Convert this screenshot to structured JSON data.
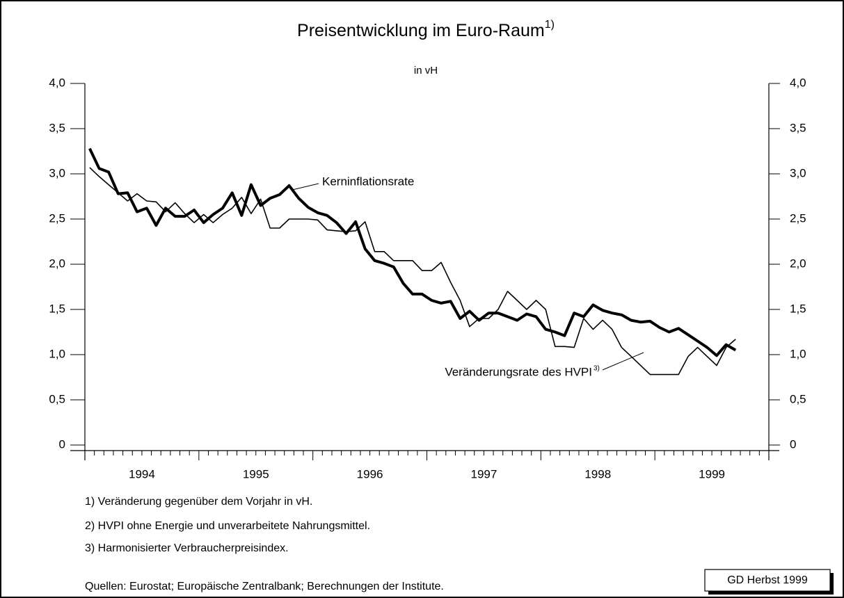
{
  "chart_data": {
    "type": "line",
    "title": "Preisentwicklung im Euro-Raum",
    "title_sup": "1)",
    "subtitle": "in vH",
    "x": [
      1994.042,
      1994.125,
      1994.208,
      1994.292,
      1994.375,
      1994.458,
      1994.542,
      1994.625,
      1994.708,
      1994.792,
      1994.875,
      1994.958,
      1995.042,
      1995.125,
      1995.208,
      1995.292,
      1995.375,
      1995.458,
      1995.542,
      1995.625,
      1995.708,
      1995.792,
      1995.875,
      1995.958,
      1996.042,
      1996.125,
      1996.208,
      1996.292,
      1996.375,
      1996.458,
      1996.542,
      1996.625,
      1996.708,
      1996.792,
      1996.875,
      1996.958,
      1997.042,
      1997.125,
      1997.208,
      1997.292,
      1997.375,
      1997.458,
      1997.542,
      1997.625,
      1997.708,
      1997.792,
      1997.875,
      1997.958,
      1998.042,
      1998.125,
      1998.208,
      1998.292,
      1998.375,
      1998.458,
      1998.542,
      1998.625,
      1998.708,
      1998.792,
      1998.875,
      1998.958,
      1999.042,
      1999.125,
      1999.208,
      1999.292,
      1999.375,
      1999.458,
      1999.542,
      1999.625,
      1999.708
    ],
    "series": [
      {
        "name": "Kerninflationsrate",
        "color": "#000000",
        "width": 4,
        "values": [
          3.28,
          3.06,
          3.02,
          2.78,
          2.79,
          2.58,
          2.62,
          2.43,
          2.62,
          2.53,
          2.53,
          2.6,
          2.46,
          2.55,
          2.62,
          2.79,
          2.54,
          2.88,
          2.65,
          2.73,
          2.77,
          2.87,
          2.73,
          2.63,
          2.57,
          2.54,
          2.46,
          2.34,
          2.47,
          2.17,
          2.04,
          2.01,
          1.97,
          1.79,
          1.67,
          1.67,
          1.6,
          1.57,
          1.59,
          1.4,
          1.48,
          1.38,
          1.46,
          1.46,
          1.42,
          1.38,
          1.45,
          1.42,
          1.28,
          1.25,
          1.21,
          1.46,
          1.42,
          1.55,
          1.49,
          1.46,
          1.44,
          1.38,
          1.36,
          1.37,
          1.3,
          1.25,
          1.29,
          1.22,
          1.15,
          1.08,
          0.99,
          1.11,
          1.05
        ]
      },
      {
        "name": "Veränderungsrate des HVPI",
        "name_sup": "3)",
        "color": "#000000",
        "width": 1.6,
        "values": [
          3.07,
          2.97,
          2.88,
          2.79,
          2.7,
          2.78,
          2.7,
          2.69,
          2.58,
          2.68,
          2.56,
          2.46,
          2.55,
          2.46,
          2.55,
          2.62,
          2.74,
          2.56,
          2.72,
          2.4,
          2.4,
          2.5,
          2.5,
          2.5,
          2.49,
          2.38,
          2.37,
          2.36,
          2.37,
          2.47,
          2.14,
          2.14,
          2.04,
          2.04,
          2.04,
          1.93,
          1.93,
          2.02,
          1.8,
          1.6,
          1.31,
          1.4,
          1.4,
          1.5,
          1.7,
          1.6,
          1.5,
          1.6,
          1.5,
          1.09,
          1.09,
          1.08,
          1.4,
          1.28,
          1.38,
          1.28,
          1.08,
          0.98,
          0.88,
          0.78,
          0.78,
          0.78,
          0.78,
          0.98,
          1.08,
          0.98,
          0.88,
          1.08,
          1.17
        ]
      }
    ],
    "xlim": [
      1994,
      2000
    ],
    "xticks": [
      {
        "value": 1994.5,
        "label": "1994"
      },
      {
        "value": 1995.5,
        "label": "1995"
      },
      {
        "value": 1996.5,
        "label": "1996"
      },
      {
        "value": 1997.5,
        "label": "1997"
      },
      {
        "value": 1998.5,
        "label": "1998"
      },
      {
        "value": 1999.5,
        "label": "1999"
      }
    ],
    "ylim": [
      0,
      4
    ],
    "yticks": [
      0,
      {
        "value": 0.5,
        "label": "0,5"
      },
      {
        "value": 1,
        "label": "1,0"
      },
      {
        "value": 1.5,
        "label": "1,5"
      },
      {
        "value": 2,
        "label": "2,0"
      },
      {
        "value": 2.5,
        "label": "2,5"
      },
      {
        "value": 3,
        "label": "3,0"
      },
      {
        "value": 3.5,
        "label": "3,5"
      },
      {
        "value": 4,
        "label": "4,0"
      }
    ],
    "y2lim": [
      0,
      4
    ],
    "y2ticks": [
      0,
      {
        "value": 0.5,
        "label": "0,5"
      },
      {
        "value": 1,
        "label": "1,0"
      },
      {
        "value": 1.5,
        "label": "1,5"
      },
      {
        "value": 2,
        "label": "2,0"
      },
      {
        "value": 2.5,
        "label": "2,5"
      },
      {
        "value": 3,
        "label": "3,0"
      },
      {
        "value": 3.5,
        "label": "3,5"
      },
      {
        "value": 4,
        "label": "4,0"
      }
    ],
    "footnotes": [
      "1) Veränderung gegenüber dem Vorjahr in vH.",
      "2) HVPI ohne Energie und unverarbeitete Nahrungsmittel.",
      "3) Harmonisierter Verbraucherpreisindex."
    ],
    "source": "Quellen:  Eurostat; Europäische Zentralbank; Berechnungen der Institute.",
    "credit": "GD Herbst 1999"
  }
}
